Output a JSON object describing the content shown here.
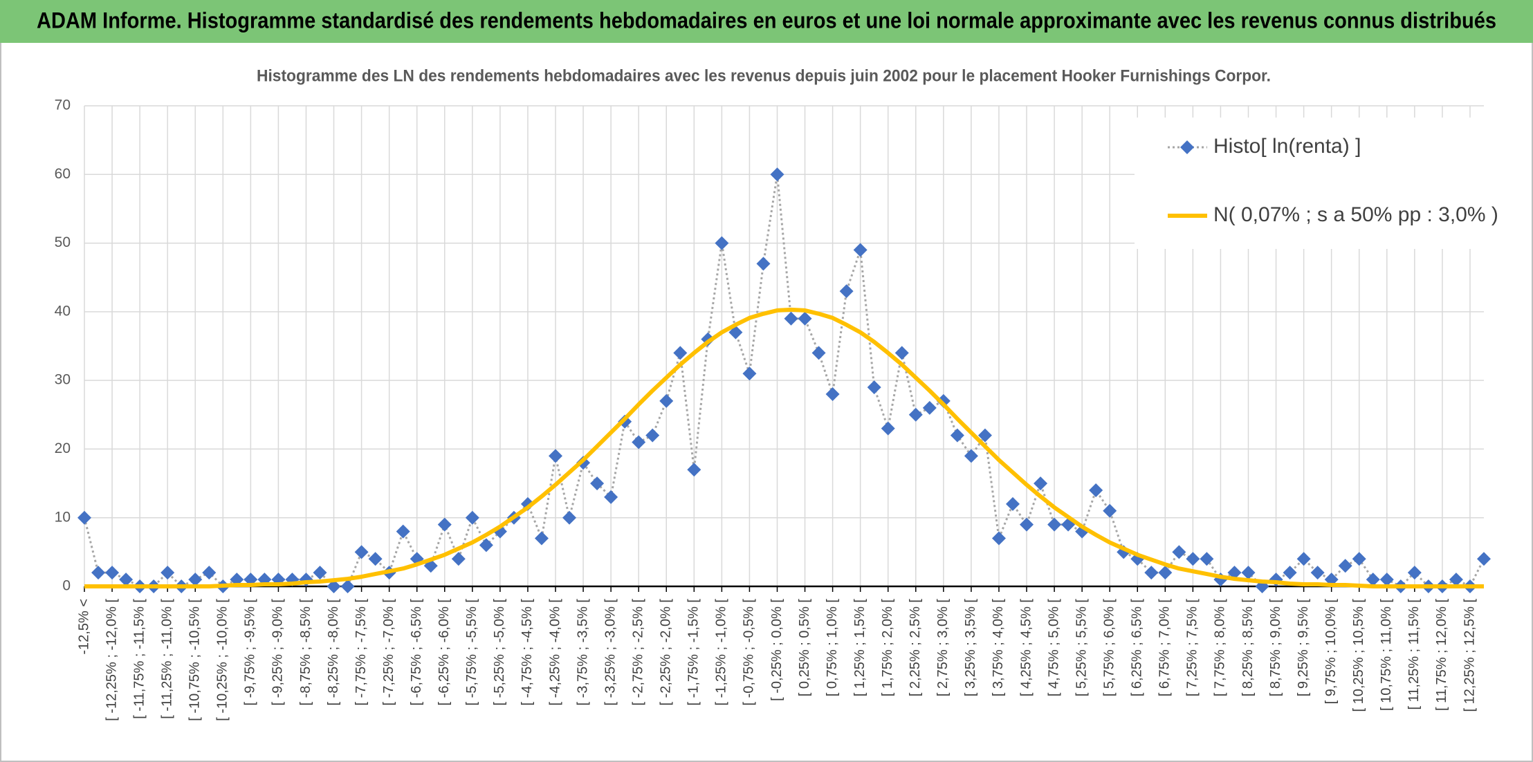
{
  "chart_data": {
    "type": "line",
    "header": "ADAM Informe. Histogramme standardisé des rendements hebdomadaires en euros et une loi normale approximante avec les revenus connus distribués",
    "title": "Histogramme des LN des rendements hebdomadaires avec les revenus depuis juin 2002 pour le placement Hooker Furnishings Corpor.",
    "categories": [
      "-12,5% <",
      null,
      "[ -12,25% ; -12,0% [",
      null,
      "[ -11,75% ; -11,5% [",
      null,
      "[ -11,25% ; -11,0% [",
      null,
      "[ -10,75% ; -10,5% [",
      null,
      "[ -10,25% ; -10,0% [",
      null,
      "[ -9,75% ; -9,5% [",
      null,
      "[ -9,25% ; -9,0% [",
      null,
      "[ -8,75% ; -8,5% [",
      null,
      "[ -8,25% ; -8,0% [",
      null,
      "[ -7,75% ; -7,5% [",
      null,
      "[ -7,25% ; -7,0% [",
      null,
      "[ -6,75% ; -6,5% [",
      null,
      "[ -6,25% ; -6,0% [",
      null,
      "[ -5,75% ; -5,5% [",
      null,
      "[ -5,25% ; -5,0% [",
      null,
      "[ -4,75% ; -4,5% [",
      null,
      "[ -4,25% ; -4,0% [",
      null,
      "[ -3,75% ; -3,5% [",
      null,
      "[ -3,25% ; -3,0% [",
      null,
      "[ -2,75% ; -2,5% [",
      null,
      "[ -2,25% ; -2,0% [",
      null,
      "[ -1,75% ; -1,5% [",
      null,
      "[ -1,25% ; -1,0% [",
      null,
      "[ -0,75% ; -0,5% [",
      null,
      "[ -0,25% ; 0,0% [",
      null,
      "[ 0,25% ; 0,5% [",
      null,
      "[ 0,75% ; 1,0% [",
      null,
      "[ 1,25% ; 1,5% [",
      null,
      "[ 1,75% ; 2,0% [",
      null,
      "[ 2,25% ; 2,5% [",
      null,
      "[ 2,75% ; 3,0% [",
      null,
      "[ 3,25% ; 3,5% [",
      null,
      "[ 3,75% ; 4,0% [",
      null,
      "[ 4,25% ; 4,5% [",
      null,
      "[ 4,75% ; 5,0% [",
      null,
      "[ 5,25% ; 5,5% [",
      null,
      "[ 5,75% ; 6,0% [",
      null,
      "[ 6,25% ; 6,5% [",
      null,
      "[ 6,75% ; 7,0% [",
      null,
      "[ 7,25% ; 7,5% [",
      null,
      "[ 7,75% ; 8,0% [",
      null,
      "[ 8,25% ; 8,5% [",
      null,
      "[ 8,75% ; 9,0% [",
      null,
      "[ 9,25% ; 9,5% [",
      null,
      "[ 9,75% ; 10,0% [",
      null,
      "[ 10,25% ; 10,5% [",
      null,
      "[ 10,75% ; 11,0% [",
      null,
      "[ 11,25% ; 11,5% [",
      null,
      "[ 11,75% ; 12,0% [",
      null,
      "[ 12,25% ; 12,5% [",
      null
    ],
    "series": [
      {
        "name": "Histo[ ln(renta) ]",
        "color": "#4472c4",
        "line_color": "#a6a6a6",
        "marker": "diamond",
        "values": [
          10,
          2,
          2,
          1,
          0,
          0,
          2,
          0,
          1,
          2,
          0,
          1,
          1,
          1,
          1,
          1,
          1,
          2,
          0,
          0,
          5,
          4,
          2,
          8,
          4,
          3,
          9,
          4,
          10,
          6,
          8,
          10,
          12,
          7,
          19,
          10,
          18,
          15,
          13,
          24,
          21,
          22,
          27,
          34,
          17,
          36,
          50,
          37,
          31,
          47,
          60,
          39,
          39,
          34,
          28,
          43,
          49,
          29,
          23,
          34,
          25,
          26,
          27,
          22,
          19,
          22,
          7,
          12,
          9,
          15,
          9,
          9,
          8,
          14,
          11,
          5,
          4,
          2,
          2,
          5,
          4,
          4,
          1,
          2,
          2,
          0,
          1,
          2,
          4,
          2,
          1,
          3,
          4,
          1,
          1,
          0,
          2,
          0,
          0,
          1,
          0,
          4
        ]
      },
      {
        "name": "N( 0,07% ; s a 50% pp : 3,0% )",
        "color": "#ffc000",
        "marker": "none",
        "values": [
          0,
          0,
          0,
          0,
          0,
          0,
          0,
          0,
          0,
          0,
          0.1,
          0.2,
          0.2,
          0.3,
          0.3,
          0.4,
          0.6,
          0.7,
          0.9,
          1.1,
          1.4,
          1.8,
          2.2,
          2.6,
          3.2,
          3.9,
          4.6,
          5.5,
          6.4,
          7.5,
          8.7,
          10.1,
          11.5,
          13.1,
          14.8,
          16.6,
          18.4,
          20.4,
          22.4,
          24.4,
          26.5,
          28.5,
          30.4,
          32.3,
          34.0,
          35.6,
          37.0,
          38.1,
          39.1,
          39.7,
          40.2,
          40.3,
          40.2,
          39.7,
          39.1,
          38.1,
          37.0,
          35.6,
          34.0,
          32.3,
          30.4,
          28.5,
          26.5,
          24.4,
          22.4,
          20.4,
          18.4,
          16.6,
          14.8,
          13.1,
          11.5,
          10.1,
          8.7,
          7.5,
          6.4,
          5.5,
          4.6,
          3.9,
          3.2,
          2.6,
          2.2,
          1.8,
          1.4,
          1.1,
          0.9,
          0.7,
          0.6,
          0.4,
          0.3,
          0.3,
          0.2,
          0.2,
          0.1,
          0,
          0,
          0,
          0,
          0,
          0,
          0,
          0,
          0
        ]
      }
    ],
    "ylim": [
      0,
      70
    ],
    "yticks": [
      0,
      10,
      20,
      30,
      40,
      50,
      60,
      70
    ],
    "grid": true,
    "legend": "top-right",
    "header_color": "#7cc576"
  }
}
